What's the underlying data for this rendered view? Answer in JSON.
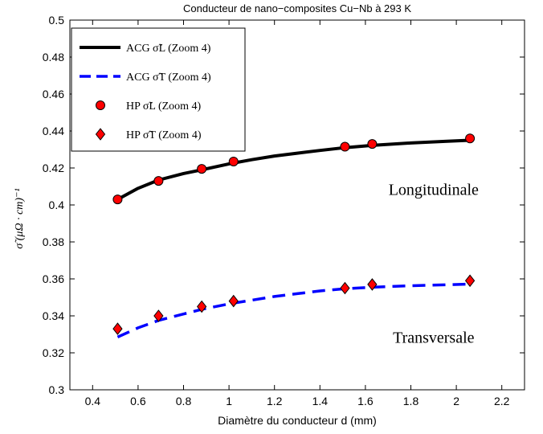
{
  "chart_data": {
    "type": "line",
    "title": "Conducteur de nano−composites Cu−Nb à 293 K",
    "xlabel": "Diamètre du conducteur d (mm)",
    "ylabel": "σ̃ (μΩ · cm)⁻¹",
    "xlim": [
      0.3,
      2.3
    ],
    "ylim": [
      0.3,
      0.5
    ],
    "x_ticks": [
      0.4,
      0.6,
      0.8,
      1,
      1.2,
      1.4,
      1.6,
      1.8,
      2,
      2.2
    ],
    "x_tick_labels": [
      "0.4",
      "0.6",
      "0.8",
      "1",
      "1.2",
      "1.4",
      "1.6",
      "1.8",
      "2",
      "2.2"
    ],
    "y_ticks": [
      0.3,
      0.32,
      0.34,
      0.36,
      0.38,
      0.4,
      0.42,
      0.44,
      0.46,
      0.48,
      0.5
    ],
    "y_tick_labels": [
      "0.3",
      "0.32",
      "0.34",
      "0.36",
      "0.38",
      "0.4",
      "0.42",
      "0.44",
      "0.46",
      "0.48",
      "0.5"
    ],
    "grid": false,
    "legend_position": "top-left",
    "series": [
      {
        "name": "ACG σ̃L (Zoom 4)",
        "kind": "line",
        "style": "solid",
        "color": "#000000",
        "x": [
          0.51,
          0.6,
          0.69,
          0.8,
          0.88,
          1.0,
          1.1,
          1.2,
          1.3,
          1.4,
          1.51,
          1.63,
          1.8,
          1.95,
          2.06
        ],
        "y": [
          0.403,
          0.409,
          0.4135,
          0.417,
          0.419,
          0.4222,
          0.4245,
          0.4265,
          0.428,
          0.4295,
          0.431,
          0.4322,
          0.4335,
          0.4344,
          0.435
        ]
      },
      {
        "name": "ACG σ̃T (Zoom 4)",
        "kind": "line",
        "style": "dashed",
        "color": "#0000ff",
        "x": [
          0.51,
          0.6,
          0.69,
          0.8,
          0.88,
          1.0,
          1.1,
          1.2,
          1.3,
          1.4,
          1.51,
          1.63,
          1.8,
          1.95,
          2.06
        ],
        "y": [
          0.3285,
          0.3335,
          0.3375,
          0.341,
          0.3435,
          0.3465,
          0.3485,
          0.3505,
          0.352,
          0.3535,
          0.3547,
          0.3555,
          0.3563,
          0.3568,
          0.3572
        ]
      },
      {
        "name": "HP σ̃L (Zoom 4)",
        "kind": "markers",
        "marker": "circle",
        "color": "#ff0000",
        "x": [
          0.51,
          0.69,
          0.88,
          1.02,
          1.51,
          1.63,
          2.06
        ],
        "y": [
          0.403,
          0.413,
          0.4195,
          0.4235,
          0.4315,
          0.433,
          0.436
        ]
      },
      {
        "name": "HP σ̃T (Zoom 4)",
        "kind": "markers",
        "marker": "diamond",
        "color": "#ff0000",
        "x": [
          0.51,
          0.69,
          0.88,
          1.02,
          1.51,
          1.63,
          2.06
        ],
        "y": [
          0.333,
          0.34,
          0.345,
          0.348,
          0.355,
          0.357,
          0.359
        ]
      }
    ],
    "annotations": [
      {
        "text": "Longitudinale",
        "x": 1.9,
        "y": 0.4055
      },
      {
        "text": "Transversale",
        "x": 1.9,
        "y": 0.3255
      }
    ]
  }
}
